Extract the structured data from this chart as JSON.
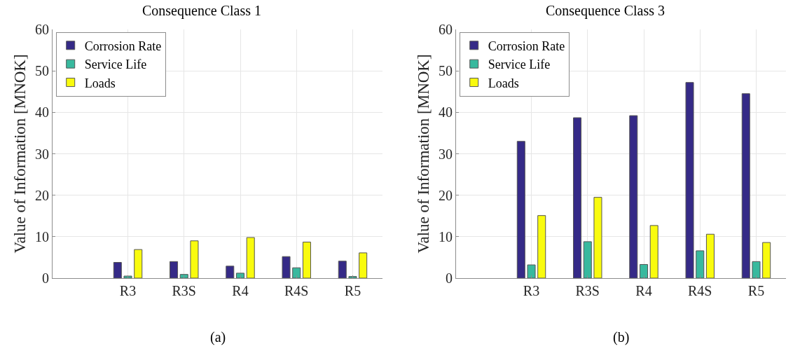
{
  "chart_data": [
    {
      "type": "bar",
      "title": "Consequence Class 1",
      "ylabel": "Value of Information [MNOK]",
      "categories": [
        "R3",
        "R3S",
        "R4",
        "R4S",
        "R5"
      ],
      "series": [
        {
          "name": "Corrosion Rate",
          "color": "#352a87",
          "values": [
            3.8,
            4.0,
            2.9,
            5.2,
            4.1
          ]
        },
        {
          "name": "Service Life",
          "color": "#38b99e",
          "values": [
            0.5,
            0.9,
            1.2,
            2.5,
            0.4
          ]
        },
        {
          "name": "Loads",
          "color": "#f9fb0e",
          "values": [
            6.9,
            9.0,
            9.8,
            8.7,
            6.1
          ]
        }
      ],
      "ylim": [
        0,
        60
      ],
      "yticks": [
        0,
        10,
        20,
        30,
        40,
        50,
        60
      ],
      "grid": true,
      "legend": "top left",
      "annotations": [
        "(a)"
      ]
    },
    {
      "type": "bar",
      "title": "Consequence Class 3",
      "ylabel": "Value of Information [MNOK]",
      "categories": [
        "R3",
        "R3S",
        "R4",
        "R4S",
        "R5"
      ],
      "series": [
        {
          "name": "Corrosion Rate",
          "color": "#352a87",
          "values": [
            33.0,
            38.7,
            39.2,
            47.2,
            44.5
          ]
        },
        {
          "name": "Service Life",
          "color": "#38b99e",
          "values": [
            3.2,
            8.8,
            3.3,
            6.6,
            4.0
          ]
        },
        {
          "name": "Loads",
          "color": "#f9fb0e",
          "values": [
            15.1,
            19.5,
            12.7,
            10.6,
            8.6
          ]
        }
      ],
      "ylim": [
        0,
        60
      ],
      "yticks": [
        0,
        10,
        20,
        30,
        40,
        50,
        60
      ],
      "grid": true,
      "legend": "top left",
      "annotations": [
        "(b)"
      ]
    }
  ]
}
